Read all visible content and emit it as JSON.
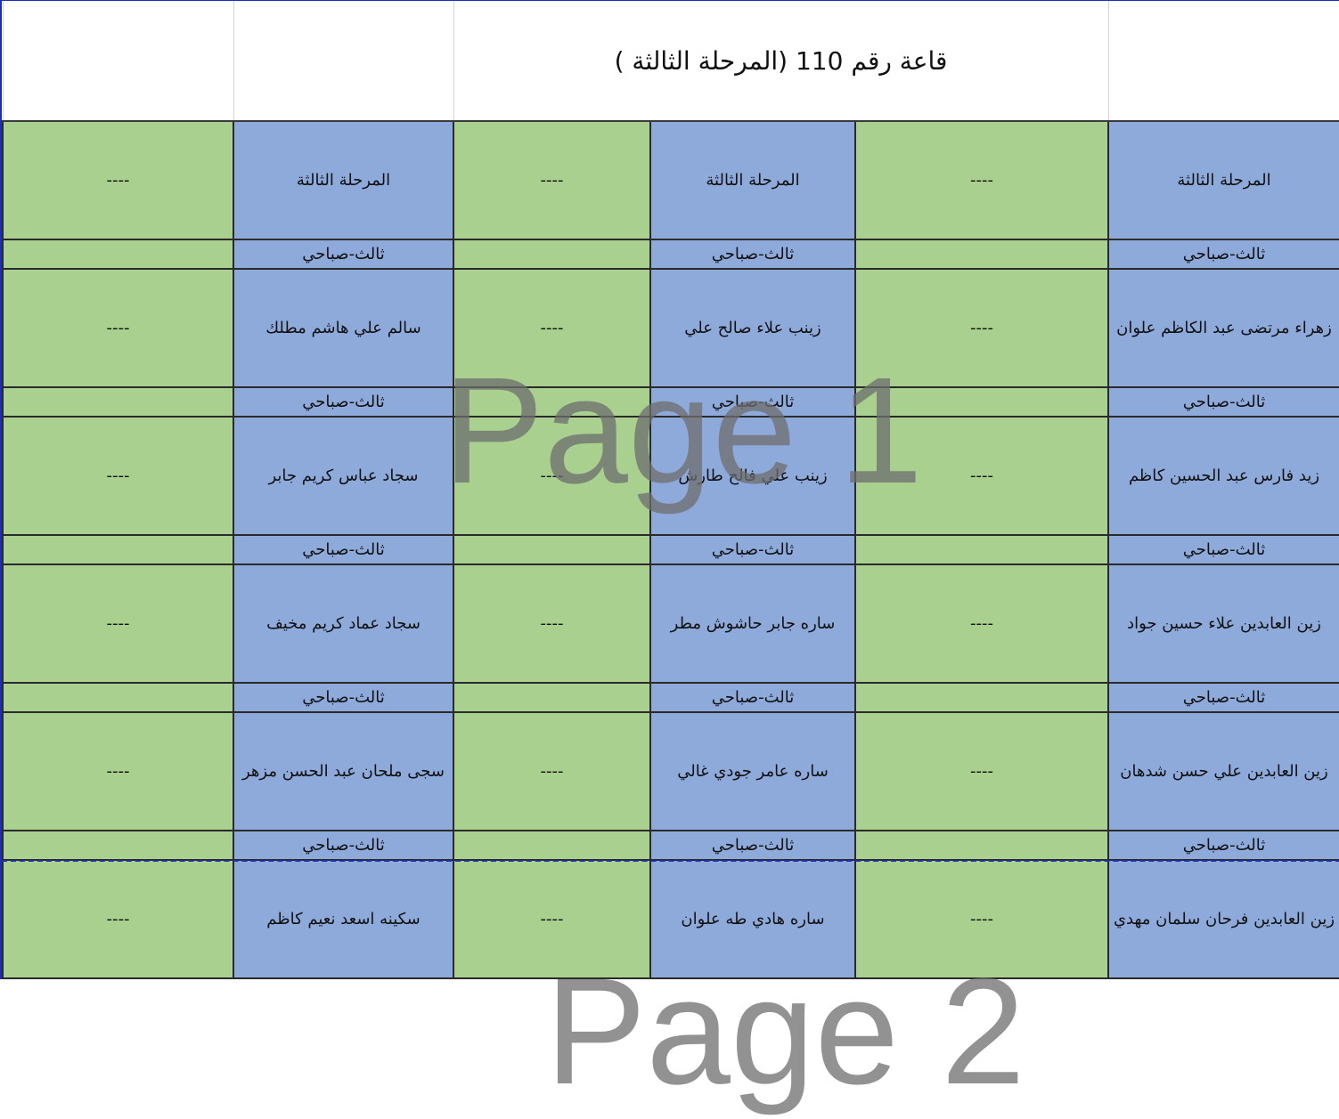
{
  "title": "قاعة رقم 110 (المرحلة الثالثة )",
  "stage_label": "المرحلة الثالثة",
  "shift_label": "ثالث-صباحي",
  "empty_mark": "----",
  "watermarks": [
    "Page 1",
    "Page 2"
  ],
  "colors": {
    "name_column": "#8eaadb",
    "empty_column": "#a9d08e",
    "page_break": "#1c2fb0"
  },
  "columns": [
    {
      "students": [
        "زهراء مرتضى عبد الكاظم علوان",
        "زيد فارس عبد الحسين كاظم",
        "زين العابدين علاء حسين جواد",
        "زين العابدين علي حسن شدهان",
        "زين العابدين فرحان سلمان مهدي"
      ]
    },
    {
      "students": [
        "زينب علاء صالح علي",
        "زينب علي فالح طارش",
        "ساره جابر حاشوش مطر",
        "ساره عامر جودي غالي",
        "ساره هادي طه علوان"
      ]
    },
    {
      "students": [
        "سالم علي هاشم مطلك",
        "سجاد عباس كريم جابر",
        "سجاد عماد كريم مخيف",
        "سجى ملحان عبد الحسن مزهر",
        "سكينه اسعد نعيم كاظم"
      ]
    }
  ]
}
